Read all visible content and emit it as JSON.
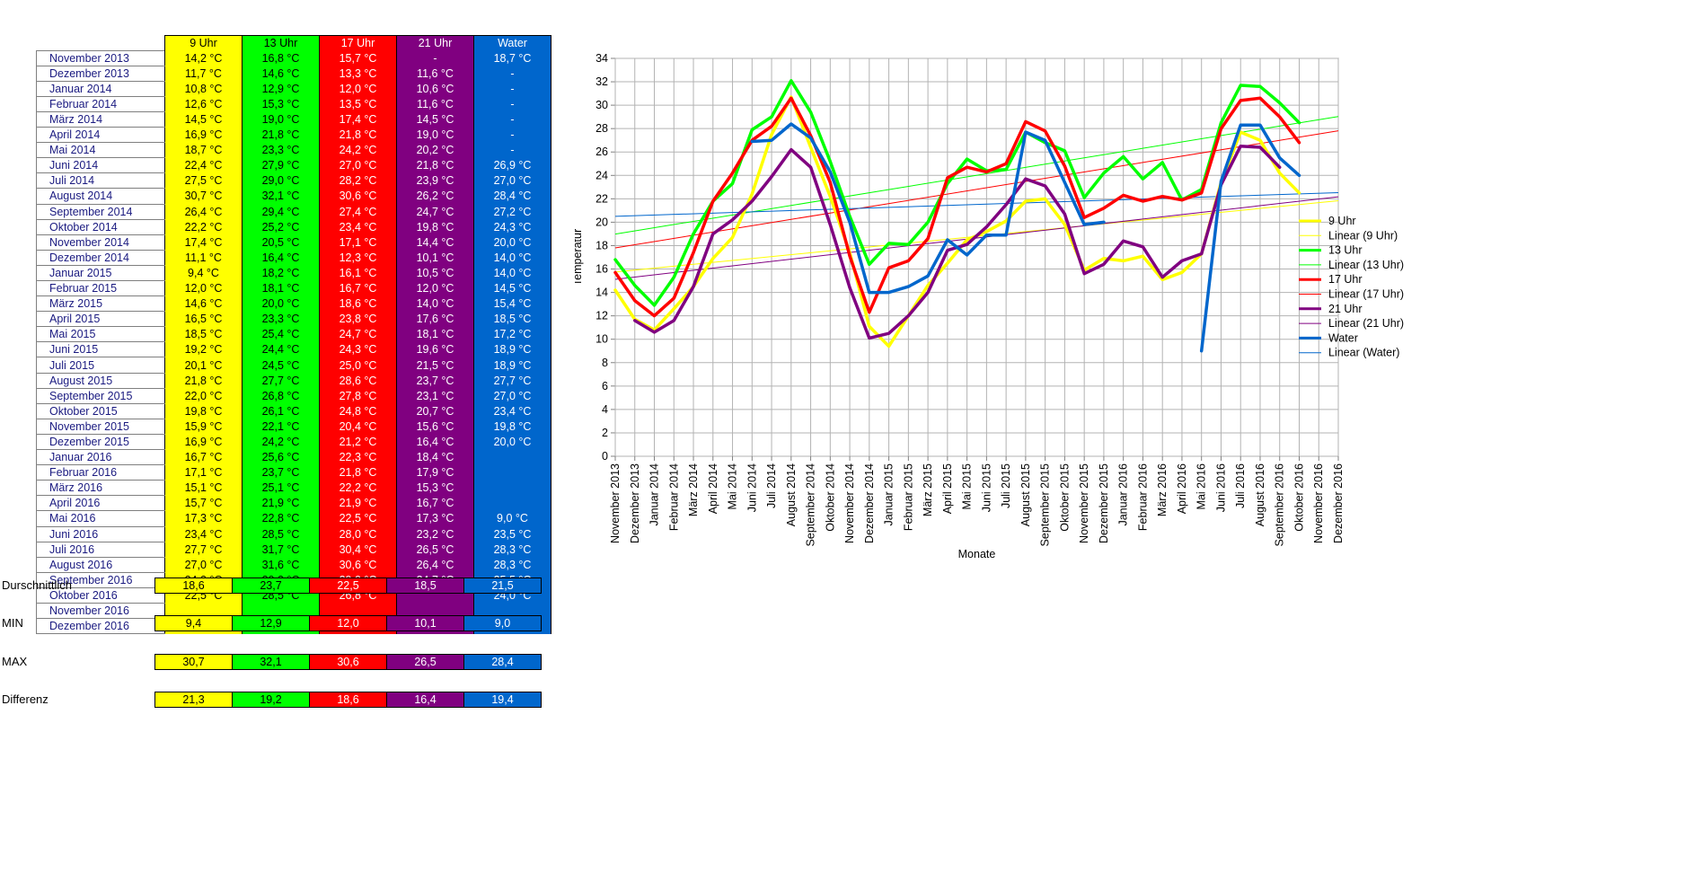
{
  "table": {
    "headers": [
      "9 Uhr",
      "13 Uhr",
      "17 Uhr",
      "21 Uhr",
      "Water"
    ],
    "rows": [
      [
        "November 2013",
        "14,2 °C",
        "16,8 °C",
        "15,7 °C",
        "-",
        "18,7 °C"
      ],
      [
        "Dezember 2013",
        "11,7 °C",
        "14,6 °C",
        "13,3 °C",
        "11,6 °C",
        "-"
      ],
      [
        "Januar 2014",
        "10,8 °C",
        "12,9 °C",
        "12,0 °C",
        "10,6 °C",
        "-"
      ],
      [
        "Februar 2014",
        "12,6 °C",
        "15,3 °C",
        "13,5 °C",
        "11,6 °C",
        "-"
      ],
      [
        "März 2014",
        "14,5 °C",
        "19,0 °C",
        "17,4 °C",
        "14,5 °C",
        "-"
      ],
      [
        "April 2014",
        "16,9 °C",
        "21,8 °C",
        "21,8 °C",
        "19,0 °C",
        "-"
      ],
      [
        "Mai 2014",
        "18,7 °C",
        "23,3 °C",
        "24,2 °C",
        "20,2 °C",
        "-"
      ],
      [
        "Juni 2014",
        "22,4 °C",
        "27,9 °C",
        "27,0 °C",
        "21,8 °C",
        "26,9 °C"
      ],
      [
        "Juli 2014",
        "27,5 °C",
        "29,0 °C",
        "28,2 °C",
        "23,9 °C",
        "27,0 °C"
      ],
      [
        "August 2014",
        "30,7 °C",
        "32,1 °C",
        "30,6 °C",
        "26,2 °C",
        "28,4 °C"
      ],
      [
        "September 2014",
        "26,4 °C",
        "29,4 °C",
        "27,4 °C",
        "24,7 °C",
        "27,2 °C"
      ],
      [
        "Oktober 2014",
        "22,2 °C",
        "25,2 °C",
        "23,4 °C",
        "19,8 °C",
        "24,3 °C"
      ],
      [
        "November 2014",
        "17,4 °C",
        "20,5 °C",
        "17,1 °C",
        "14,4 °C",
        "20,0 °C"
      ],
      [
        "Dezember 2014",
        "11,1 °C",
        "16,4 °C",
        "12,3 °C",
        "10,1 °C",
        "14,0 °C"
      ],
      [
        "Januar 2015",
        "9,4 °C",
        "18,2 °C",
        "16,1 °C",
        "10,5 °C",
        "14,0 °C"
      ],
      [
        "Februar 2015",
        "12,0 °C",
        "18,1 °C",
        "16,7 °C",
        "12,0 °C",
        "14,5 °C"
      ],
      [
        "März 2015",
        "14,6 °C",
        "20,0 °C",
        "18,6 °C",
        "14,0 °C",
        "15,4 °C"
      ],
      [
        "April 2015",
        "16,5 °C",
        "23,3 °C",
        "23,8 °C",
        "17,6 °C",
        "18,5 °C"
      ],
      [
        "Mai 2015",
        "18,5 °C",
        "25,4 °C",
        "24,7 °C",
        "18,1 °C",
        "17,2 °C"
      ],
      [
        "Juni 2015",
        "19,2 °C",
        "24,4 °C",
        "24,3 °C",
        "19,6 °C",
        "18,9 °C"
      ],
      [
        "Juli 2015",
        "20,1 °C",
        "24,5 °C",
        "25,0 °C",
        "21,5 °C",
        "18,9 °C"
      ],
      [
        "August 2015",
        "21,8 °C",
        "27,7 °C",
        "28,6 °C",
        "23,7 °C",
        "27,7 °C"
      ],
      [
        "September 2015",
        "22,0 °C",
        "26,8 °C",
        "27,8 °C",
        "23,1 °C",
        "27,0 °C"
      ],
      [
        "Oktober 2015",
        "19,8 °C",
        "26,1 °C",
        "24,8 °C",
        "20,7 °C",
        "23,4 °C"
      ],
      [
        "November 2015",
        "15,9 °C",
        "22,1 °C",
        "20,4 °C",
        "15,6 °C",
        "19,8 °C"
      ],
      [
        "Dezember 2015",
        "16,9 °C",
        "24,2 °C",
        "21,2 °C",
        "16,4 °C",
        "20,0 °C"
      ],
      [
        "Januar 2016",
        "16,7 °C",
        "25,6 °C",
        "22,3 °C",
        "18,4 °C",
        ""
      ],
      [
        "Februar 2016",
        "17,1 °C",
        "23,7 °C",
        "21,8 °C",
        "17,9 °C",
        ""
      ],
      [
        "März 2016",
        "15,1 °C",
        "25,1 °C",
        "22,2 °C",
        "15,3 °C",
        ""
      ],
      [
        "April 2016",
        "15,7 °C",
        "21,9 °C",
        "21,9 °C",
        "16,7 °C",
        ""
      ],
      [
        "Mai 2016",
        "17,3 °C",
        "22,8 °C",
        "22,5 °C",
        "17,3 °C",
        "9,0 °C"
      ],
      [
        "Juni 2016",
        "23,4 °C",
        "28,5 °C",
        "28,0 °C",
        "23,2 °C",
        "23,5 °C"
      ],
      [
        "Juli 2016",
        "27,7 °C",
        "31,7 °C",
        "30,4 °C",
        "26,5 °C",
        "28,3 °C"
      ],
      [
        "August 2016",
        "27,0 °C",
        "31,6 °C",
        "30,6 °C",
        "26,4 °C",
        "28,3 °C"
      ],
      [
        "September 2016",
        "24,2 °C",
        "30,2 °C",
        "29,0 °C",
        "24,7 °C",
        "25,5 °C"
      ],
      [
        "Oktober 2016",
        "22,5 °C",
        "28,5 °C",
        "26,8 °C",
        "",
        "24,0 °C"
      ],
      [
        "November 2016",
        "",
        "",
        "",
        "",
        ""
      ],
      [
        "Dezember 2016",
        "",
        "",
        "",
        "",
        ""
      ]
    ]
  },
  "stats": [
    {
      "label": "Durschnittlich",
      "values": [
        "18,6",
        "23,7",
        "22,5",
        "18,5",
        "21,5"
      ]
    },
    {
      "label": "MIN",
      "values": [
        "9,4",
        "12,9",
        "12,0",
        "10,1",
        "9,0"
      ]
    },
    {
      "label": "MAX",
      "values": [
        "30,7",
        "32,1",
        "30,6",
        "26,5",
        "28,4"
      ]
    },
    {
      "label": "Differenz",
      "values": [
        "21,3",
        "19,2",
        "18,6",
        "16,4",
        "19,4"
      ]
    }
  ],
  "colors": {
    "9 Uhr": "#ffff00",
    "13 Uhr": "#00ff00",
    "17 Uhr": "#ff0000",
    "21 Uhr": "#800080",
    "Water": "#0066cc"
  },
  "chart_data": {
    "type": "line",
    "xlabel": "Monate",
    "ylabel": "Temperatur",
    "ylim": [
      0,
      34
    ],
    "ytick_step": 2,
    "grid": true,
    "legend_position": "right",
    "categories": [
      "November 2013",
      "Dezember 2013",
      "Januar 2014",
      "Februar 2014",
      "März 2014",
      "April 2014",
      "Mai 2014",
      "Juni 2014",
      "Juli 2014",
      "August 2014",
      "September 2014",
      "Oktober 2014",
      "November 2014",
      "Dezember 2014",
      "Januar 2015",
      "Februar 2015",
      "März 2015",
      "April 2015",
      "Mai 2015",
      "Juni 2015",
      "Juli 2015",
      "August 2015",
      "September 2015",
      "Oktober 2015",
      "November 2015",
      "Dezember 2015",
      "Januar 2016",
      "Februar 2016",
      "März 2016",
      "April 2016",
      "Mai 2016",
      "Juni 2016",
      "Juli 2016",
      "August 2016",
      "September 2016",
      "Oktober 2016",
      "November 2016",
      "Dezember 2016"
    ],
    "series": [
      {
        "name": "9 Uhr",
        "color": "#ffff00",
        "values": [
          14.2,
          11.7,
          10.8,
          12.6,
          14.5,
          16.9,
          18.7,
          22.4,
          27.5,
          30.7,
          26.4,
          22.2,
          17.4,
          11.1,
          9.4,
          12.0,
          14.6,
          16.5,
          18.5,
          19.2,
          20.1,
          21.8,
          22.0,
          19.8,
          15.9,
          16.9,
          16.7,
          17.1,
          15.1,
          15.7,
          17.3,
          23.4,
          27.7,
          27.0,
          24.2,
          22.5,
          null,
          null
        ]
      },
      {
        "name": "13 Uhr",
        "color": "#00ff00",
        "values": [
          16.8,
          14.6,
          12.9,
          15.3,
          19.0,
          21.8,
          23.3,
          27.9,
          29.0,
          32.1,
          29.4,
          25.2,
          20.5,
          16.4,
          18.2,
          18.1,
          20.0,
          23.3,
          25.4,
          24.4,
          24.5,
          27.7,
          26.8,
          26.1,
          22.1,
          24.2,
          25.6,
          23.7,
          25.1,
          21.9,
          22.8,
          28.5,
          31.7,
          31.6,
          30.2,
          28.5,
          null,
          null
        ]
      },
      {
        "name": "17 Uhr",
        "color": "#ff0000",
        "values": [
          15.7,
          13.3,
          12.0,
          13.5,
          17.4,
          21.8,
          24.2,
          27.0,
          28.2,
          30.6,
          27.4,
          23.4,
          17.1,
          12.3,
          16.1,
          16.7,
          18.6,
          23.8,
          24.7,
          24.3,
          25.0,
          28.6,
          27.8,
          24.8,
          20.4,
          21.2,
          22.3,
          21.8,
          22.2,
          21.9,
          22.5,
          28.0,
          30.4,
          30.6,
          29.0,
          26.8,
          null,
          null
        ]
      },
      {
        "name": "21 Uhr",
        "color": "#800080",
        "values": [
          null,
          11.6,
          10.6,
          11.6,
          14.5,
          19.0,
          20.2,
          21.8,
          23.9,
          26.2,
          24.7,
          19.8,
          14.4,
          10.1,
          10.5,
          12.0,
          14.0,
          17.6,
          18.1,
          19.6,
          21.5,
          23.7,
          23.1,
          20.7,
          15.6,
          16.4,
          18.4,
          17.9,
          15.3,
          16.7,
          17.3,
          23.2,
          26.5,
          26.4,
          24.7,
          null,
          null,
          null
        ]
      },
      {
        "name": "Water",
        "color": "#0066cc",
        "values": [
          18.7,
          null,
          null,
          null,
          null,
          null,
          null,
          26.9,
          27.0,
          28.4,
          27.2,
          24.3,
          20.0,
          14.0,
          14.0,
          14.5,
          15.4,
          18.5,
          17.2,
          18.9,
          18.9,
          27.7,
          27.0,
          23.4,
          19.8,
          20.0,
          null,
          null,
          null,
          null,
          9.0,
          23.5,
          28.3,
          28.3,
          25.5,
          24.0,
          null,
          null
        ]
      }
    ],
    "legend": [
      "9 Uhr",
      "Linear (9 Uhr)",
      "13 Uhr",
      "Linear (13 Uhr)",
      "17 Uhr",
      "Linear (17 Uhr)",
      "21 Uhr",
      "Linear (21 Uhr)",
      "Water",
      "Linear (Water)"
    ]
  }
}
